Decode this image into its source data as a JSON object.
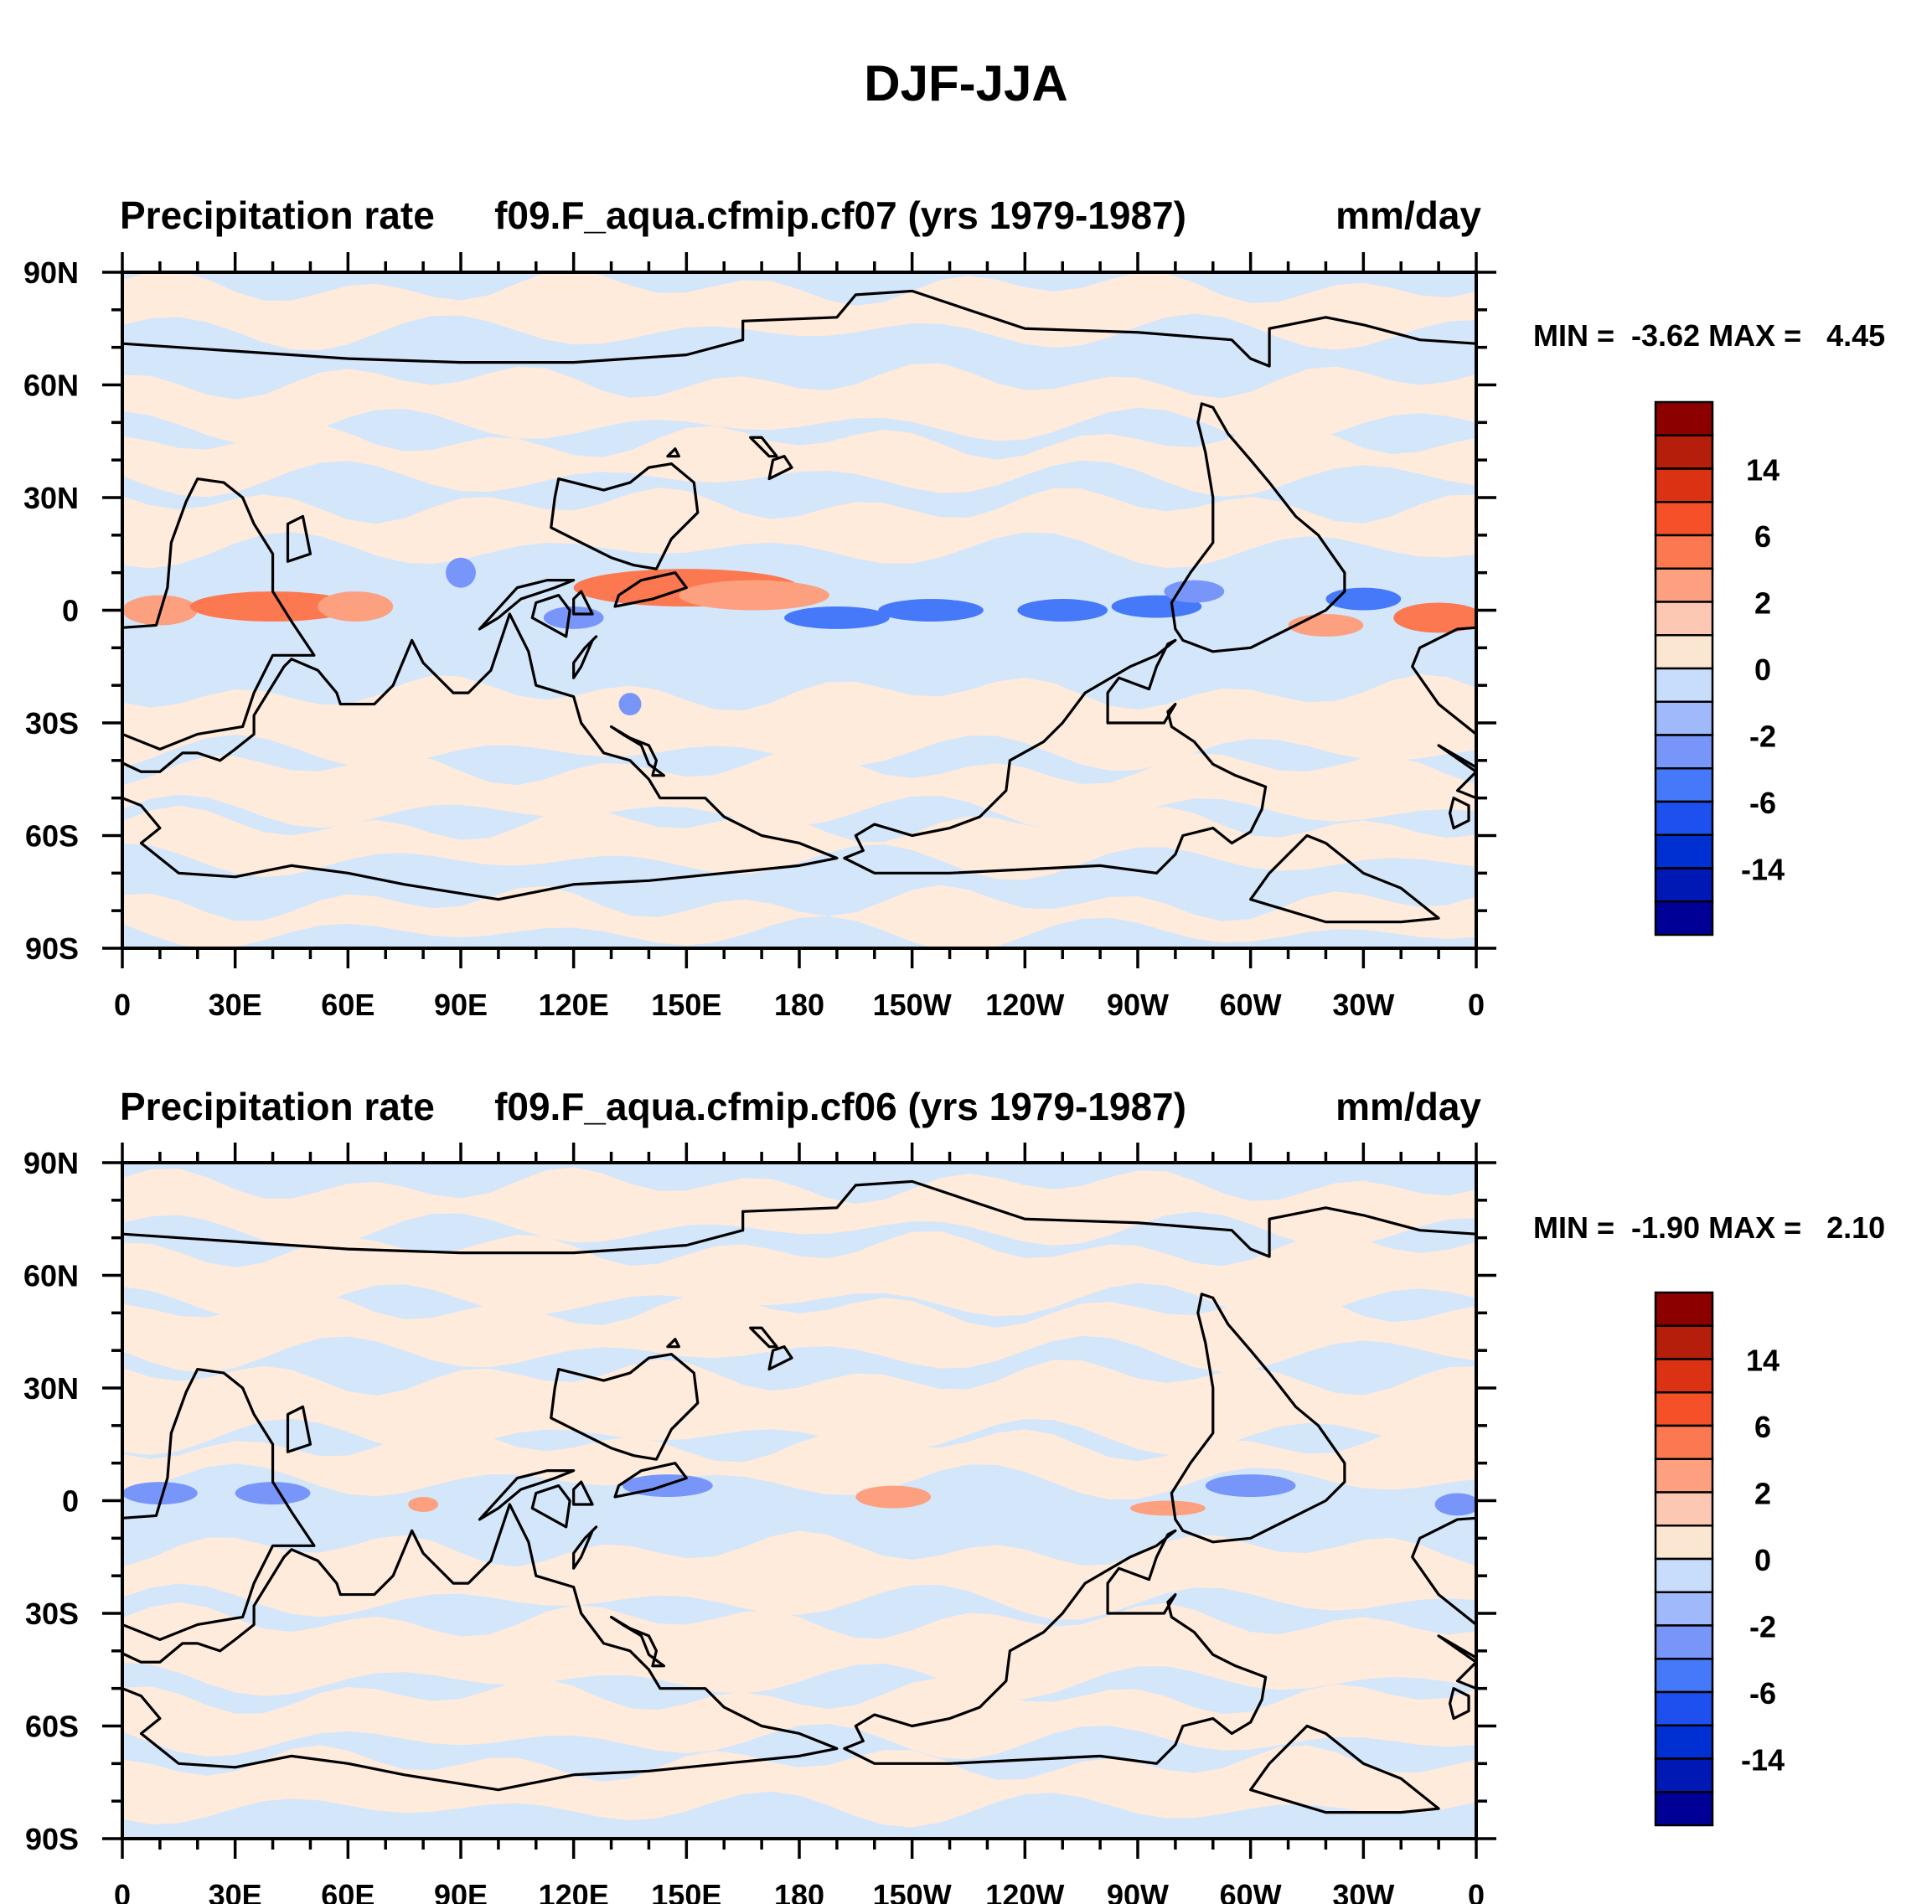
{
  "figure": {
    "title": "DJF-JJA"
  },
  "colors": {
    "levels": [
      "#000096",
      "#0019b4",
      "#0030d2",
      "#1e50f0",
      "#4678fa",
      "#7896fa",
      "#a0b9fa",
      "#c8dcfc",
      "#ffffff",
      "#fbe6d2",
      "#fcc8b4",
      "#fca080",
      "#fb7850",
      "#f65028",
      "#dc3214",
      "#b41e0a",
      "#8c0000"
    ],
    "background_pos": "#feebdc",
    "background_neg": "#d4e6fa",
    "coast": "#000000"
  },
  "chart_data": [
    {
      "type": "heatmap",
      "title_left": "Precipitation rate",
      "title_center": "f09.F_aqua.cfmip.cf07 (yrs 1979-1987)",
      "title_right": "mm/day",
      "stats": "MIN =  -3.62 MAX =   4.45",
      "min": -3.62,
      "max": 4.45,
      "xlabel": "",
      "ylabel": "",
      "xticks": [
        "0",
        "30E",
        "60E",
        "90E",
        "120E",
        "150E",
        "180",
        "150W",
        "120W",
        "90W",
        "60W",
        "30W",
        "0"
      ],
      "yticks": [
        "90N",
        "60N",
        "30N",
        "0",
        "30S",
        "60S",
        "90S"
      ],
      "xlim": [
        0,
        360
      ],
      "ylim": [
        -90,
        90
      ],
      "colorbar_labels": [
        "14",
        "6",
        "2",
        "0",
        "-2",
        "-6",
        "-14"
      ],
      "colorbar_levels": [
        -14,
        -10,
        -6,
        -4,
        -2,
        -1,
        -0.5,
        0,
        0.5,
        1,
        2,
        4,
        6,
        10,
        14
      ],
      "anomalies": [
        {
          "lon": 10,
          "lat": 0,
          "value": 2,
          "rx": 10,
          "ry": 4
        },
        {
          "lon": 40,
          "lat": 1,
          "value": 2.5,
          "rx": 22,
          "ry": 4
        },
        {
          "lon": 62,
          "lat": 1,
          "value": 2,
          "rx": 10,
          "ry": 4
        },
        {
          "lon": 150,
          "lat": 6,
          "value": 3,
          "rx": 30,
          "ry": 5
        },
        {
          "lon": 168,
          "lat": 4,
          "value": 2,
          "rx": 20,
          "ry": 4
        },
        {
          "lon": 190,
          "lat": -2,
          "value": -2,
          "rx": 14,
          "ry": 3
        },
        {
          "lon": 215,
          "lat": 0,
          "value": -2.5,
          "rx": 14,
          "ry": 3
        },
        {
          "lon": 250,
          "lat": 0,
          "value": -2.5,
          "rx": 12,
          "ry": 3
        },
        {
          "lon": 275,
          "lat": 1,
          "value": -2,
          "rx": 12,
          "ry": 3
        },
        {
          "lon": 330,
          "lat": 3,
          "value": -2.5,
          "rx": 10,
          "ry": 3
        },
        {
          "lon": 350,
          "lat": -2,
          "value": 2.5,
          "rx": 12,
          "ry": 4
        },
        {
          "lon": 320,
          "lat": -4,
          "value": 1.5,
          "rx": 10,
          "ry": 3
        },
        {
          "lon": 120,
          "lat": -2,
          "value": -1.5,
          "rx": 8,
          "ry": 3
        },
        {
          "lon": 135,
          "lat": -25,
          "value": -1.5,
          "rx": 3,
          "ry": 3
        },
        {
          "lon": 90,
          "lat": 10,
          "value": -1.5,
          "rx": 4,
          "ry": 4
        },
        {
          "lon": 285,
          "lat": 5,
          "value": -1.5,
          "rx": 8,
          "ry": 3
        }
      ]
    },
    {
      "type": "heatmap",
      "title_left": "Precipitation rate",
      "title_center": "f09.F_aqua.cfmip.cf06 (yrs 1979-1987)",
      "title_right": "mm/day",
      "stats": "MIN =  -1.90 MAX =   2.10",
      "min": -1.9,
      "max": 2.1,
      "xlabel": "",
      "ylabel": "",
      "xticks": [
        "0",
        "30E",
        "60E",
        "90E",
        "120E",
        "150E",
        "180",
        "150W",
        "120W",
        "90W",
        "60W",
        "30W",
        "0"
      ],
      "yticks": [
        "90N",
        "60N",
        "30N",
        "0",
        "30S",
        "60S",
        "90S"
      ],
      "xlim": [
        0,
        360
      ],
      "ylim": [
        -90,
        90
      ],
      "colorbar_labels": [
        "14",
        "6",
        "2",
        "0",
        "-2",
        "-6",
        "-14"
      ],
      "colorbar_levels": [
        -14,
        -10,
        -6,
        -4,
        -2,
        -1,
        -0.5,
        0,
        0.5,
        1,
        2,
        4,
        6,
        10,
        14
      ],
      "anomalies": [
        {
          "lon": 10,
          "lat": 2,
          "value": -1.5,
          "rx": 10,
          "ry": 3
        },
        {
          "lon": 40,
          "lat": 2,
          "value": -1.5,
          "rx": 10,
          "ry": 3
        },
        {
          "lon": 145,
          "lat": 4,
          "value": -1.5,
          "rx": 12,
          "ry": 3
        },
        {
          "lon": 205,
          "lat": 1,
          "value": 1.2,
          "rx": 10,
          "ry": 3
        },
        {
          "lon": 278,
          "lat": -2,
          "value": 1.2,
          "rx": 10,
          "ry": 2
        },
        {
          "lon": 300,
          "lat": 4,
          "value": -1.5,
          "rx": 12,
          "ry": 3
        },
        {
          "lon": 355,
          "lat": -1,
          "value": -1.5,
          "rx": 6,
          "ry": 3
        },
        {
          "lon": 80,
          "lat": -1,
          "value": 1.2,
          "rx": 4,
          "ry": 2
        }
      ]
    }
  ]
}
